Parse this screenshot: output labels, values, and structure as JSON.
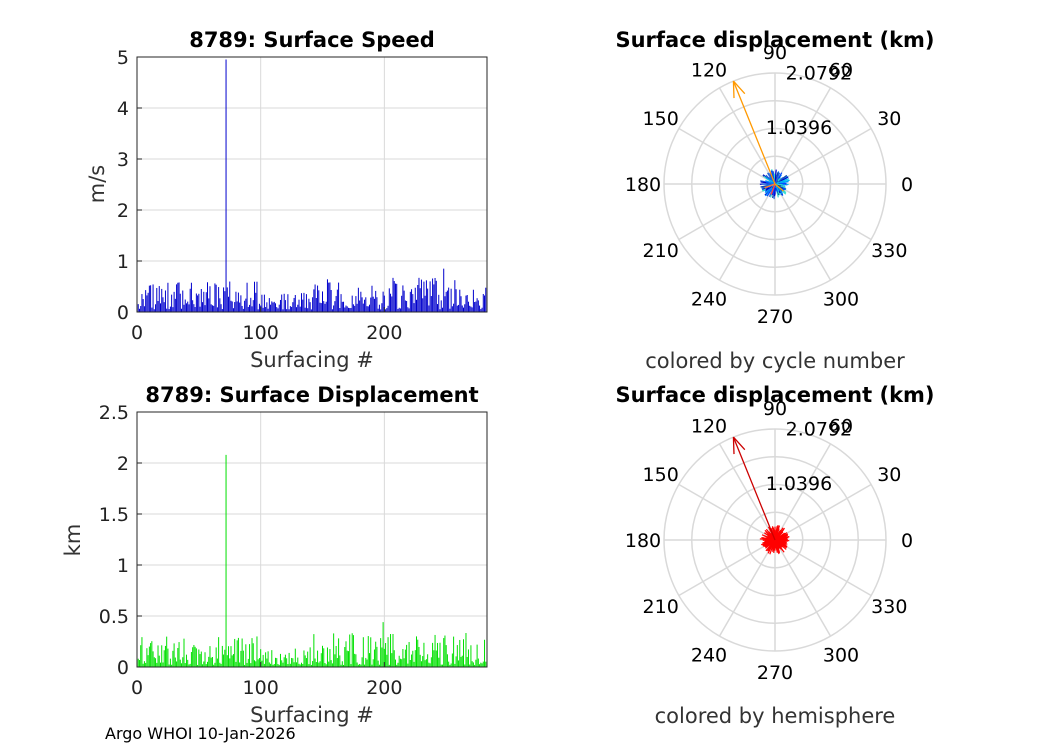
{
  "footer": "Argo WHOI 10-Jan-2026",
  "colors": {
    "speed": "#0000cc",
    "displacement": "#00e000",
    "arrow_cycle": "#ff9900",
    "arrow_hemisphere": "#cc0000",
    "scatter_hemisphere": "#ff0000",
    "grid": "#d9d9d9"
  },
  "chart_data": [
    {
      "type": "bar",
      "title": "8789: Surface Speed",
      "xlabel": "Surfacing #",
      "ylabel": "m/s",
      "xlim": [
        0,
        283
      ],
      "ylim": [
        0,
        5
      ],
      "xticks": [
        "0",
        "100",
        "200"
      ],
      "yticks": [
        "0",
        "1",
        "2",
        "3",
        "4",
        "5"
      ],
      "grid": true,
      "typical_range": [
        0.05,
        0.6
      ],
      "spike": {
        "x": 72,
        "value": 4.95
      },
      "max_other": {
        "x": 248,
        "value": 0.85
      }
    },
    {
      "type": "bar",
      "title": "8789: Surface Displacement",
      "xlabel": "Surfacing #",
      "ylabel": "km",
      "xlim": [
        0,
        283
      ],
      "ylim": [
        0,
        2.5
      ],
      "xticks": [
        "0",
        "100",
        "200"
      ],
      "yticks": [
        "0",
        "0.5",
        "1",
        "1.5",
        "2",
        "2.5"
      ],
      "grid": true,
      "typical_range": [
        0.02,
        0.3
      ],
      "spike": {
        "x": 72,
        "value": 2.08
      },
      "max_other": {
        "x": 199,
        "value": 0.44
      }
    },
    {
      "type": "scatter",
      "title": "Surface displacement (km)",
      "subtitle": "colored by cycle number",
      "angle_ticks": [
        "0",
        "30",
        "60",
        "90",
        "120",
        "150",
        "180",
        "210",
        "240",
        "270",
        "300",
        "330"
      ],
      "radial_ticks": [
        "1.0396",
        "2.0792"
      ],
      "rmax": 2.0792,
      "arrow": {
        "angle_deg": 112,
        "r": 2.08
      }
    },
    {
      "type": "scatter",
      "title": "Surface displacement (km)",
      "subtitle": "colored by hemisphere",
      "angle_ticks": [
        "0",
        "30",
        "60",
        "90",
        "120",
        "150",
        "180",
        "210",
        "240",
        "270",
        "300",
        "330"
      ],
      "radial_ticks": [
        "1.0396",
        "2.0792"
      ],
      "rmax": 2.0792,
      "arrow": {
        "angle_deg": 112,
        "r": 2.08
      }
    }
  ]
}
